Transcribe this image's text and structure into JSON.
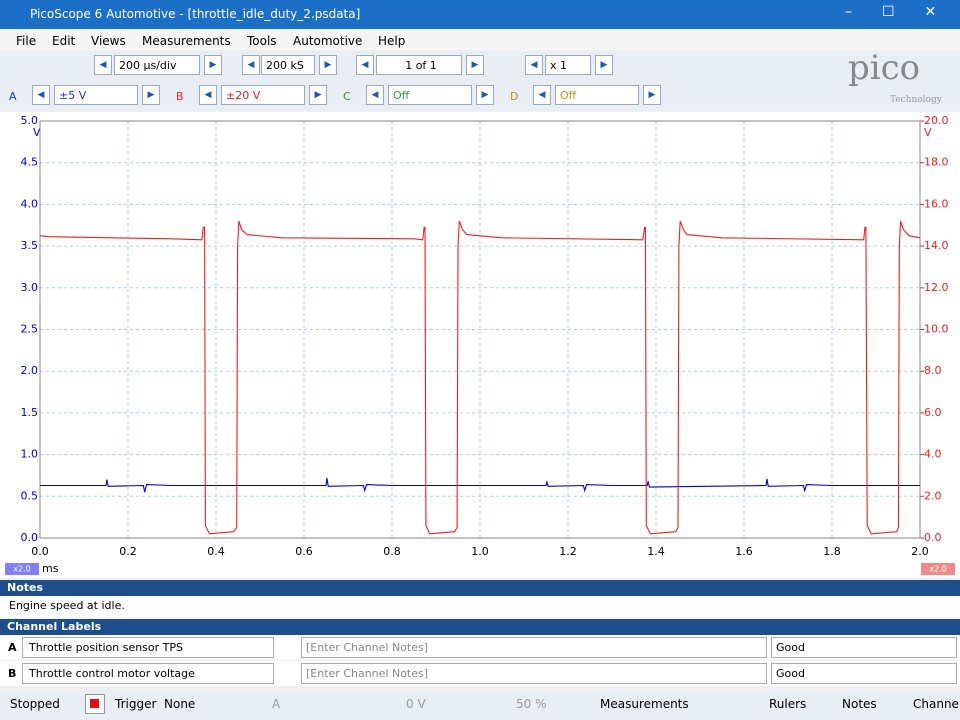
{
  "window": {
    "title": "PicoScope 6 Automotive - [throttle_idle_duty_2.psdata]"
  },
  "menu": [
    "File",
    "Edit",
    "Views",
    "Measurements",
    "Tools",
    "Automotive",
    "Help"
  ],
  "toolbar": {
    "timebase": "200 µs/div",
    "samples": "200 kS",
    "buffer": "1 of 1",
    "zoom": "x 1"
  },
  "channels": [
    {
      "id": "A",
      "range": "±5 V"
    },
    {
      "id": "B",
      "range": "±20 V"
    },
    {
      "id": "C",
      "range": "Off"
    },
    {
      "id": "D",
      "range": "Off"
    }
  ],
  "logo": {
    "brand": "pico",
    "sub": "Technology"
  },
  "scope": {
    "type": "line",
    "xlim": [
      0,
      2
    ],
    "xticks": [
      {
        "value": 0,
        "label": "0.0"
      },
      0.2,
      0.4,
      0.6,
      0.8,
      {
        "value": 1,
        "label": "1.0"
      },
      1.2,
      1.4,
      1.6,
      1.8,
      {
        "value": 2,
        "label": "2.0"
      }
    ],
    "xunit": "ms",
    "ylim": [
      0,
      5
    ],
    "yticks": [
      {
        "value": 0,
        "label": "0.0"
      },
      0.5,
      {
        "value": 1,
        "label": "1.0"
      },
      1.5,
      {
        "value": 2,
        "label": "2.0"
      },
      2.5,
      {
        "value": 3,
        "label": "3.0"
      },
      3.5,
      {
        "value": 4,
        "label": "4.0"
      },
      4.5,
      {
        "value": 5,
        "label": "5.0"
      }
    ],
    "yunit": "V",
    "y2lim": [
      0,
      20
    ],
    "y2ticks": [
      {
        "value": 0,
        "label": "0.0"
      },
      {
        "value": 2,
        "label": "2.0"
      },
      {
        "value": 4,
        "label": "4.0"
      },
      {
        "value": 6,
        "label": "6.0"
      },
      {
        "value": 8,
        "label": "8.0"
      },
      {
        "value": 10,
        "label": "10.0"
      },
      {
        "value": 12,
        "label": "12.0"
      },
      {
        "value": 14,
        "label": "14.0"
      },
      {
        "value": 16,
        "label": "16.0"
      },
      {
        "value": 18,
        "label": "18.0"
      },
      {
        "value": 20,
        "label": "20.0"
      }
    ],
    "y2unit": "V",
    "zoom_left": "x2.0",
    "zoom_right": "x2.0",
    "series": [
      {
        "color": "#0000cc",
        "x": [
          0,
          0.15,
          0.152,
          0.155,
          0.235,
          0.238,
          0.242,
          0.3,
          0.65,
          0.652,
          0.655,
          0.735,
          0.738,
          0.742,
          0.8,
          1.15,
          1.152,
          1.155,
          1.235,
          1.238,
          1.242,
          1.3,
          1.38,
          1.382,
          1.385,
          1.65,
          1.652,
          1.655,
          1.735,
          1.738,
          1.742,
          1.8,
          2
        ],
        "values": [
          0.63,
          0.63,
          0.7,
          0.62,
          0.63,
          0.55,
          0.64,
          0.63,
          0.63,
          0.72,
          0.62,
          0.63,
          0.57,
          0.64,
          0.63,
          0.63,
          0.67,
          0.62,
          0.63,
          0.57,
          0.64,
          0.63,
          0.63,
          0.68,
          0.61,
          0.63,
          0.71,
          0.62,
          0.63,
          0.57,
          0.64,
          0.63,
          0.63
        ]
      },
      {
        "color": "#e8211f",
        "axis": "y2",
        "x": [
          0,
          0.02,
          0.3,
          0.368,
          0.371,
          0.374,
          0.376,
          0.385,
          0.44,
          0.447,
          0.449,
          0.452,
          0.458,
          0.47,
          0.55,
          0.85,
          0.87,
          0.873,
          0.875,
          0.877,
          0.886,
          0.942,
          0.948,
          0.95,
          0.953,
          0.96,
          0.97,
          1.05,
          1.37,
          1.374,
          1.376,
          1.378,
          1.387,
          1.445,
          1.45,
          1.452,
          1.455,
          1.462,
          1.47,
          1.55,
          1.872,
          1.875,
          1.877,
          1.88,
          1.889,
          1.947,
          1.951,
          1.953,
          1.956,
          1.962,
          1.975,
          2
        ],
        "values": [
          14.5,
          14.45,
          14.35,
          14.3,
          14.9,
          14.9,
          0.6,
          0.2,
          0.3,
          0.5,
          14,
          15.2,
          14.8,
          14.55,
          14.4,
          14.35,
          14.3,
          14.9,
          14.9,
          0.6,
          0.2,
          0.3,
          0.5,
          14,
          15.2,
          14.8,
          14.55,
          14.4,
          14.3,
          14.9,
          14.9,
          0.6,
          0.2,
          0.3,
          0.5,
          14,
          15.2,
          14.8,
          14.55,
          14.4,
          14.3,
          14.9,
          14.9,
          0.6,
          0.2,
          0.3,
          0.5,
          14,
          15.2,
          14.8,
          14.5,
          14.4
        ]
      }
    ]
  },
  "notes": {
    "title": "Notes",
    "text": "Engine speed at idle."
  },
  "channel_labels": {
    "title": "Channel Labels",
    "rows": [
      {
        "channel": "A",
        "label": "Throttle position sensor TPS",
        "notes": "[Enter Channel Notes]",
        "status": "Good"
      },
      {
        "channel": "B",
        "label": "Throttle control motor voltage",
        "notes": "[Enter Channel Notes]",
        "status": "Good"
      }
    ]
  },
  "status": {
    "state": "Stopped",
    "trigger_label": "Trigger",
    "trigger": "None",
    "trigger_channel": "A",
    "threshold": "0 V",
    "pretrigger": "50 %",
    "buttons": [
      "Measurements",
      "Rulers",
      "Notes",
      "Channel Labels"
    ]
  }
}
